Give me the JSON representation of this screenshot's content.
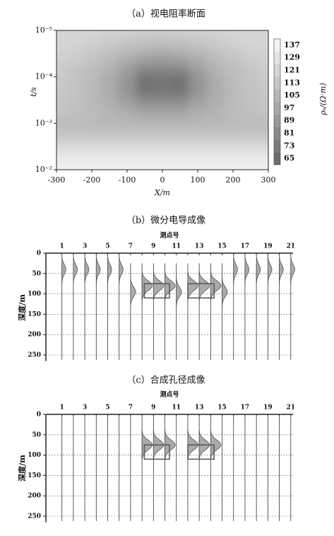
{
  "chart_data": [
    {
      "type": "contour",
      "title": "（a）视电阻率断面",
      "xlabel": "X/m",
      "ylabel": "t/s",
      "colorbar_label": "ρₛ/(Ω·m)",
      "x": [
        -300,
        -250,
        -200,
        -150,
        -100,
        -50,
        0,
        50,
        100,
        150,
        200,
        250,
        300
      ],
      "y": [
        1e-05,
        1.78e-05,
        3.16e-05,
        5.62e-05,
        0.0001,
        0.000178,
        0.000316,
        0.000562,
        0.001,
        0.00178,
        0.00316,
        0.00562,
        0.01
      ],
      "z": [
        [
          121,
          121,
          121,
          120,
          119,
          118,
          118,
          118,
          119,
          120,
          121,
          121,
          121
        ],
        [
          121,
          121,
          119,
          116,
          113,
          111,
          110,
          111,
          113,
          116,
          119,
          121,
          121
        ],
        [
          120,
          118,
          114,
          110,
          104,
          100,
          98,
          100,
          104,
          110,
          114,
          118,
          120
        ],
        [
          118,
          114,
          110,
          104,
          95,
          86,
          84,
          86,
          95,
          104,
          110,
          114,
          118
        ],
        [
          116,
          112,
          108,
          100,
          88,
          70,
          72,
          70,
          88,
          100,
          108,
          112,
          116
        ],
        [
          115,
          112,
          107,
          99,
          86,
          68,
          70,
          68,
          86,
          99,
          107,
          112,
          115
        ],
        [
          114,
          111,
          107,
          101,
          92,
          80,
          80,
          80,
          92,
          101,
          107,
          111,
          114
        ],
        [
          112,
          110,
          108,
          104,
          100,
          95,
          95,
          95,
          100,
          104,
          108,
          110,
          112
        ],
        [
          108,
          108,
          107,
          106,
          105,
          104,
          104,
          104,
          105,
          106,
          107,
          108,
          108
        ],
        [
          112,
          112,
          112,
          112,
          112,
          112,
          112,
          112,
          112,
          112,
          112,
          112,
          112
        ],
        [
          124,
          124,
          124,
          124,
          124,
          124,
          124,
          124,
          124,
          124,
          124,
          124,
          124
        ],
        [
          132,
          132,
          132,
          132,
          132,
          132,
          132,
          132,
          132,
          132,
          132,
          132,
          132
        ],
        [
          136,
          136,
          136,
          136,
          136,
          136,
          136,
          136,
          136,
          136,
          136,
          136,
          136
        ]
      ],
      "xlim": [
        -300,
        300
      ],
      "xticks": [
        -300,
        -200,
        -100,
        0,
        100,
        200,
        300
      ],
      "ylim": [
        1e-05,
        0.01
      ],
      "yscale": "log",
      "y_inverted": true,
      "yticks": [
        {
          "value": 1e-05,
          "label": "10⁻⁵"
        },
        {
          "value": 0.0001,
          "label": "10⁻⁴"
        },
        {
          "value": 0.001,
          "label": "10⁻³"
        },
        {
          "value": 0.01,
          "label": "10⁻²"
        }
      ],
      "clim": [
        61,
        141
      ],
      "cticks": [
        137,
        129,
        121,
        113,
        105,
        97,
        89,
        81,
        73,
        65
      ]
    },
    {
      "type": "wiggle",
      "title": "（b）微分电导成像",
      "xlabel": "测点号",
      "ylabel": "深度/m",
      "stations": [
        1,
        2,
        3,
        4,
        5,
        6,
        7,
        8,
        9,
        10,
        11,
        12,
        13,
        14,
        15,
        16,
        17,
        18,
        19,
        20,
        21
      ],
      "amplitude": [
        0.35,
        0.35,
        0.35,
        0.35,
        0.35,
        0.35,
        0.45,
        0.9,
        0.9,
        0.9,
        0.45,
        0.9,
        0.9,
        0.9,
        0.45,
        0.35,
        0.35,
        0.35,
        0.35,
        0.35,
        0.35
      ],
      "peak_depth": [
        40,
        40,
        40,
        40,
        40,
        40,
        95,
        80,
        80,
        80,
        95,
        80,
        80,
        80,
        95,
        40,
        40,
        40,
        40,
        40,
        40
      ],
      "trace_range": [
        25,
        262
      ],
      "boxes": [
        {
          "x": [
            8.2,
            10.4
          ],
          "depth": [
            75,
            110
          ]
        },
        {
          "x": [
            12.0,
            14.3
          ],
          "depth": [
            75,
            110
          ]
        }
      ],
      "xlim": [
        -0.4,
        21.2
      ],
      "xticks": [
        1,
        3,
        5,
        7,
        9,
        11,
        13,
        15,
        17,
        19,
        21
      ],
      "ylim": [
        0,
        265
      ],
      "yticks": [
        0,
        50,
        100,
        150,
        200,
        250
      ],
      "grid": true
    },
    {
      "type": "wiggle",
      "title": "（c）合成孔径成像",
      "xlabel": "测点号",
      "ylabel": "深度/m",
      "stations": [
        1,
        2,
        3,
        4,
        5,
        6,
        7,
        8,
        9,
        10,
        11,
        12,
        13,
        14,
        15,
        16,
        17,
        18,
        19,
        20,
        21
      ],
      "amplitude": [
        0,
        0,
        0,
        0,
        0,
        0,
        0,
        0.9,
        0.9,
        0.9,
        0,
        0.9,
        0.9,
        0.9,
        0,
        0,
        0,
        0,
        0,
        0,
        0
      ],
      "peak_depth": [
        null,
        null,
        null,
        null,
        null,
        null,
        null,
        75,
        75,
        75,
        null,
        75,
        75,
        75,
        null,
        null,
        null,
        null,
        null,
        null,
        null
      ],
      "trace_range": [
        5,
        262
      ],
      "boxes": [
        {
          "x": [
            8.2,
            10.4
          ],
          "depth": [
            75,
            110
          ]
        },
        {
          "x": [
            12.0,
            14.3
          ],
          "depth": [
            75,
            110
          ]
        }
      ],
      "xlim": [
        -0.4,
        21.2
      ],
      "xticks": [
        1,
        3,
        5,
        7,
        9,
        11,
        13,
        15,
        17,
        19,
        21
      ],
      "ylim": [
        0,
        265
      ],
      "yticks": [
        0,
        50,
        100,
        150,
        200,
        250
      ],
      "grid": true
    }
  ]
}
